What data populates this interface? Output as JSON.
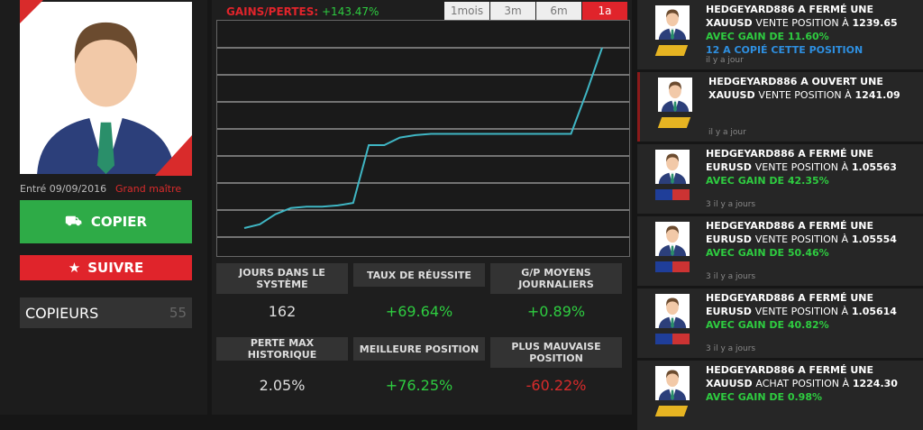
{
  "profile": {
    "joined": "Entré 09/09/2016",
    "rank": "Grand maître",
    "copy_button": "COPIER",
    "follow_button": "SUIVRE",
    "copiers_label": "COPIEURS",
    "copiers_count": "55"
  },
  "performance": {
    "label": "GAINS/PERTES:",
    "value": "+143.47%",
    "tabs": [
      "1mois",
      "3m",
      "6m",
      "1a"
    ],
    "active_tab": 3,
    "chart": {
      "type": "line",
      "values": [
        0,
        3,
        11,
        16,
        17,
        17,
        18,
        20,
        66,
        66,
        72,
        74,
        75,
        75,
        75,
        75,
        75,
        75,
        75,
        75,
        75,
        75,
        108,
        143.47
      ],
      "color": "#3fb6c4"
    }
  },
  "stats": [
    {
      "label": "JOURS DANS LE SYSTÈME",
      "value": "162"
    },
    {
      "label": "TAUX DE RÉUSSITE",
      "value": "+69.64%"
    },
    {
      "label": "G/P MOYENS JOURNALIERS",
      "value": "+0.89%"
    },
    {
      "label": "PERTE MAX HISTORIQUE",
      "value": "2.05%"
    },
    {
      "label": "MEILLEURE POSITION",
      "value": "+76.25%"
    },
    {
      "label": "PLUS MAUVAISE POSITION",
      "value": "-60.22%"
    }
  ],
  "feed": [
    {
      "headline": "HEDGEYARD886 A FERMÉ UNE",
      "symbol": "XAUUSD",
      "action": "VENTE POSITION À",
      "price": "1239.65",
      "gain": "AVEC GAIN DE 11.60%",
      "copies": "12 A COPIÉ CETTE POSITION",
      "time": "il y a jour"
    },
    {
      "headline": "HEDGEYARD886 A OUVERT UNE",
      "symbol": "XAUUSD",
      "action": "VENTE POSITION À",
      "price": "1241.09",
      "time": "il y a jour"
    },
    {
      "headline": "HEDGEYARD886 A FERMÉ UNE",
      "symbol": "EURUSD",
      "action": "VENTE POSITION À",
      "price": "1.05563",
      "gain": "AVEC GAIN DE 42.35%",
      "time": "3 il y a jours"
    },
    {
      "headline": "HEDGEYARD886 A FERMÉ UNE",
      "symbol": "EURUSD",
      "action": "VENTE POSITION À",
      "price": "1.05554",
      "gain": "AVEC GAIN DE 50.46%",
      "time": "3 il y a jours"
    },
    {
      "headline": "HEDGEYARD886 A FERMÉ UNE",
      "symbol": "EURUSD",
      "action": "VENTE POSITION À",
      "price": "1.05614",
      "gain": "AVEC GAIN DE 40.82%",
      "time": "3 il y a jours"
    },
    {
      "headline": "HEDGEYARD886 A FERMÉ UNE",
      "symbol": "XAUUSD",
      "action": "ACHAT POSITION À",
      "price": "1224.30",
      "gain": "AVEC GAIN DE 0.98%"
    }
  ]
}
